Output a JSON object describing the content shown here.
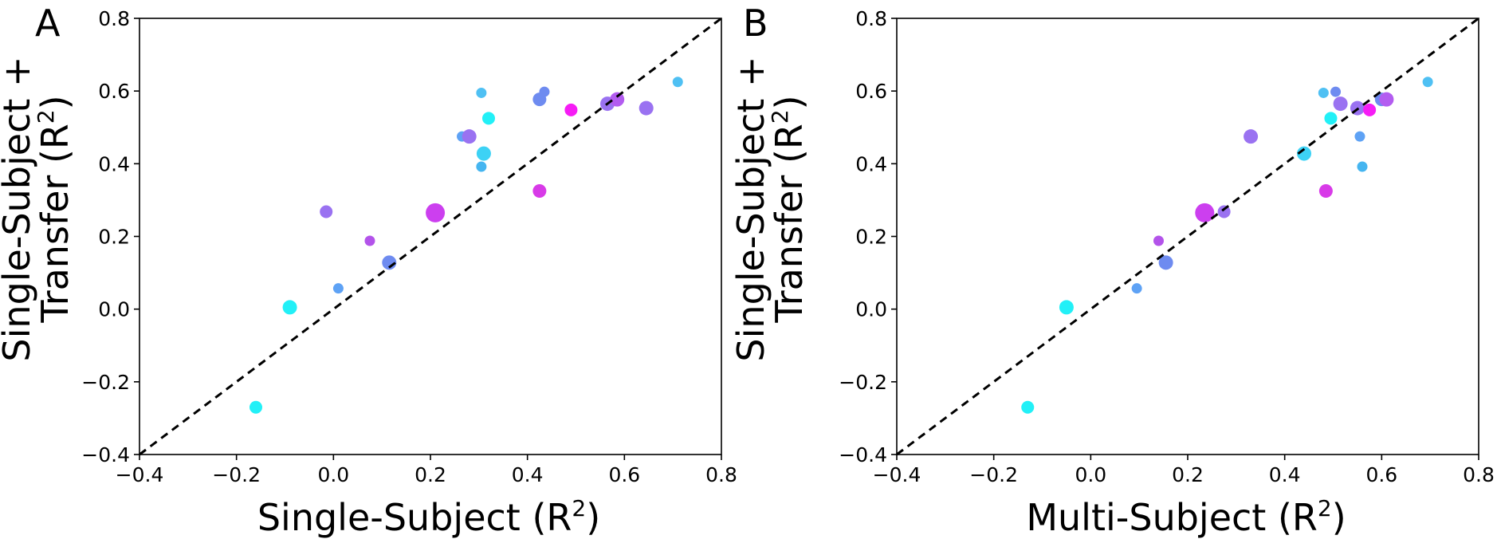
{
  "chart_data": [
    {
      "type": "scatter",
      "panel_label": "A",
      "xlabel": "Single-Subject (R",
      "xlabel_sup": "2",
      "xlabel_end": ")",
      "ylabel_line1": "Single-Subject +",
      "ylabel_line2": "Transfer (R",
      "ylabel_sup": "2",
      "ylabel_end": ")",
      "xlim": [
        -0.4,
        0.8
      ],
      "ylim": [
        -0.4,
        0.8
      ],
      "xticks": [
        -0.4,
        -0.2,
        0.0,
        0.2,
        0.4,
        0.6,
        0.8
      ],
      "yticks": [
        -0.4,
        -0.2,
        0.0,
        0.2,
        0.4,
        0.6,
        0.8
      ],
      "xtick_labels": [
        "−0.4",
        "−0.2",
        "0.0",
        "0.2",
        "0.4",
        "0.6",
        "0.8"
      ],
      "ytick_labels": [
        "−0.4",
        "−0.2",
        "0.0",
        "0.2",
        "0.4",
        "0.6",
        "0.8"
      ],
      "reference_line": {
        "from": [
          -0.4,
          -0.4
        ],
        "to": [
          0.8,
          0.8
        ],
        "style": "dashed"
      },
      "points": [
        {
          "x": -0.16,
          "y": -0.27,
          "size": 8,
          "color": "#22f0f7"
        },
        {
          "x": -0.09,
          "y": 0.005,
          "size": 9,
          "color": "#22f0f7"
        },
        {
          "x": 0.01,
          "y": 0.057,
          "size": 6.5,
          "color": "#5ea2f5"
        },
        {
          "x": -0.015,
          "y": 0.268,
          "size": 8,
          "color": "#9a72f1"
        },
        {
          "x": 0.075,
          "y": 0.188,
          "size": 6.5,
          "color": "#b353ea"
        },
        {
          "x": 0.115,
          "y": 0.128,
          "size": 9,
          "color": "#6e8bf0"
        },
        {
          "x": 0.21,
          "y": 0.265,
          "size": 12,
          "color": "#cc3fef"
        },
        {
          "x": 0.265,
          "y": 0.475,
          "size": 6.5,
          "color": "#5ea2f5"
        },
        {
          "x": 0.28,
          "y": 0.475,
          "size": 9,
          "color": "#9a72f1"
        },
        {
          "x": 0.305,
          "y": 0.595,
          "size": 6.5,
          "color": "#4fc0f3"
        },
        {
          "x": 0.305,
          "y": 0.392,
          "size": 6.5,
          "color": "#45b5f0"
        },
        {
          "x": 0.31,
          "y": 0.428,
          "size": 9,
          "color": "#3dd2f5"
        },
        {
          "x": 0.32,
          "y": 0.525,
          "size": 8,
          "color": "#22f0f7"
        },
        {
          "x": 0.425,
          "y": 0.325,
          "size": 8.5,
          "color": "#d83ae8"
        },
        {
          "x": 0.425,
          "y": 0.577,
          "size": 8.5,
          "color": "#6e8bf0"
        },
        {
          "x": 0.435,
          "y": 0.598,
          "size": 6.5,
          "color": "#6e8bf0"
        },
        {
          "x": 0.49,
          "y": 0.548,
          "size": 8,
          "color": "#f61cf5"
        },
        {
          "x": 0.565,
          "y": 0.565,
          "size": 9,
          "color": "#9a72f1"
        },
        {
          "x": 0.585,
          "y": 0.577,
          "size": 9,
          "color": "#b35cf0"
        },
        {
          "x": 0.645,
          "y": 0.553,
          "size": 9,
          "color": "#9a72f1"
        },
        {
          "x": 0.71,
          "y": 0.625,
          "size": 6.5,
          "color": "#4fc0f3"
        }
      ]
    },
    {
      "type": "scatter",
      "panel_label": "B",
      "xlabel": "Multi-Subject (R",
      "xlabel_sup": "2",
      "xlabel_end": ")",
      "ylabel_line1": "Single-Subject +",
      "ylabel_line2": "Transfer (R",
      "ylabel_sup": "2",
      "ylabel_end": ")",
      "xlim": [
        -0.4,
        0.8
      ],
      "ylim": [
        -0.4,
        0.8
      ],
      "xticks": [
        -0.4,
        -0.2,
        0.0,
        0.2,
        0.4,
        0.6,
        0.8
      ],
      "yticks": [
        -0.4,
        -0.2,
        0.0,
        0.2,
        0.4,
        0.6,
        0.8
      ],
      "xtick_labels": [
        "−0.4",
        "−0.2",
        "0.0",
        "0.2",
        "0.4",
        "0.6",
        "0.8"
      ],
      "ytick_labels": [
        "−0.4",
        "−0.2",
        "0.0",
        "0.2",
        "0.4",
        "0.6",
        "0.8"
      ],
      "reference_line": {
        "from": [
          -0.4,
          -0.4
        ],
        "to": [
          0.8,
          0.8
        ],
        "style": "dashed"
      },
      "points": [
        {
          "x": -0.13,
          "y": -0.27,
          "size": 8,
          "color": "#22f0f7"
        },
        {
          "x": -0.05,
          "y": 0.005,
          "size": 9,
          "color": "#22f0f7"
        },
        {
          "x": 0.095,
          "y": 0.057,
          "size": 6.5,
          "color": "#5ea2f5"
        },
        {
          "x": 0.14,
          "y": 0.188,
          "size": 6.5,
          "color": "#b353ea"
        },
        {
          "x": 0.155,
          "y": 0.128,
          "size": 9,
          "color": "#6e8bf0"
        },
        {
          "x": 0.235,
          "y": 0.265,
          "size": 12,
          "color": "#cc3fef"
        },
        {
          "x": 0.275,
          "y": 0.268,
          "size": 8,
          "color": "#9a72f1"
        },
        {
          "x": 0.33,
          "y": 0.475,
          "size": 9,
          "color": "#9a72f1"
        },
        {
          "x": 0.44,
          "y": 0.428,
          "size": 9,
          "color": "#3dd2f5"
        },
        {
          "x": 0.48,
          "y": 0.595,
          "size": 6.5,
          "color": "#4fc0f3"
        },
        {
          "x": 0.485,
          "y": 0.325,
          "size": 8.5,
          "color": "#d83ae8"
        },
        {
          "x": 0.495,
          "y": 0.525,
          "size": 8,
          "color": "#22f0f7"
        },
        {
          "x": 0.505,
          "y": 0.598,
          "size": 6.5,
          "color": "#6e8bf0"
        },
        {
          "x": 0.515,
          "y": 0.565,
          "size": 9,
          "color": "#9a72f1"
        },
        {
          "x": 0.55,
          "y": 0.553,
          "size": 9,
          "color": "#9a72f1"
        },
        {
          "x": 0.555,
          "y": 0.475,
          "size": 6.5,
          "color": "#5ea2f5"
        },
        {
          "x": 0.56,
          "y": 0.392,
          "size": 6.5,
          "color": "#45b5f0"
        },
        {
          "x": 0.575,
          "y": 0.548,
          "size": 8,
          "color": "#f61cf5"
        },
        {
          "x": 0.6,
          "y": 0.577,
          "size": 8.5,
          "color": "#6e8bf0"
        },
        {
          "x": 0.61,
          "y": 0.577,
          "size": 9,
          "color": "#b35cf0"
        },
        {
          "x": 0.695,
          "y": 0.625,
          "size": 6.5,
          "color": "#4fc0f3"
        }
      ]
    }
  ]
}
